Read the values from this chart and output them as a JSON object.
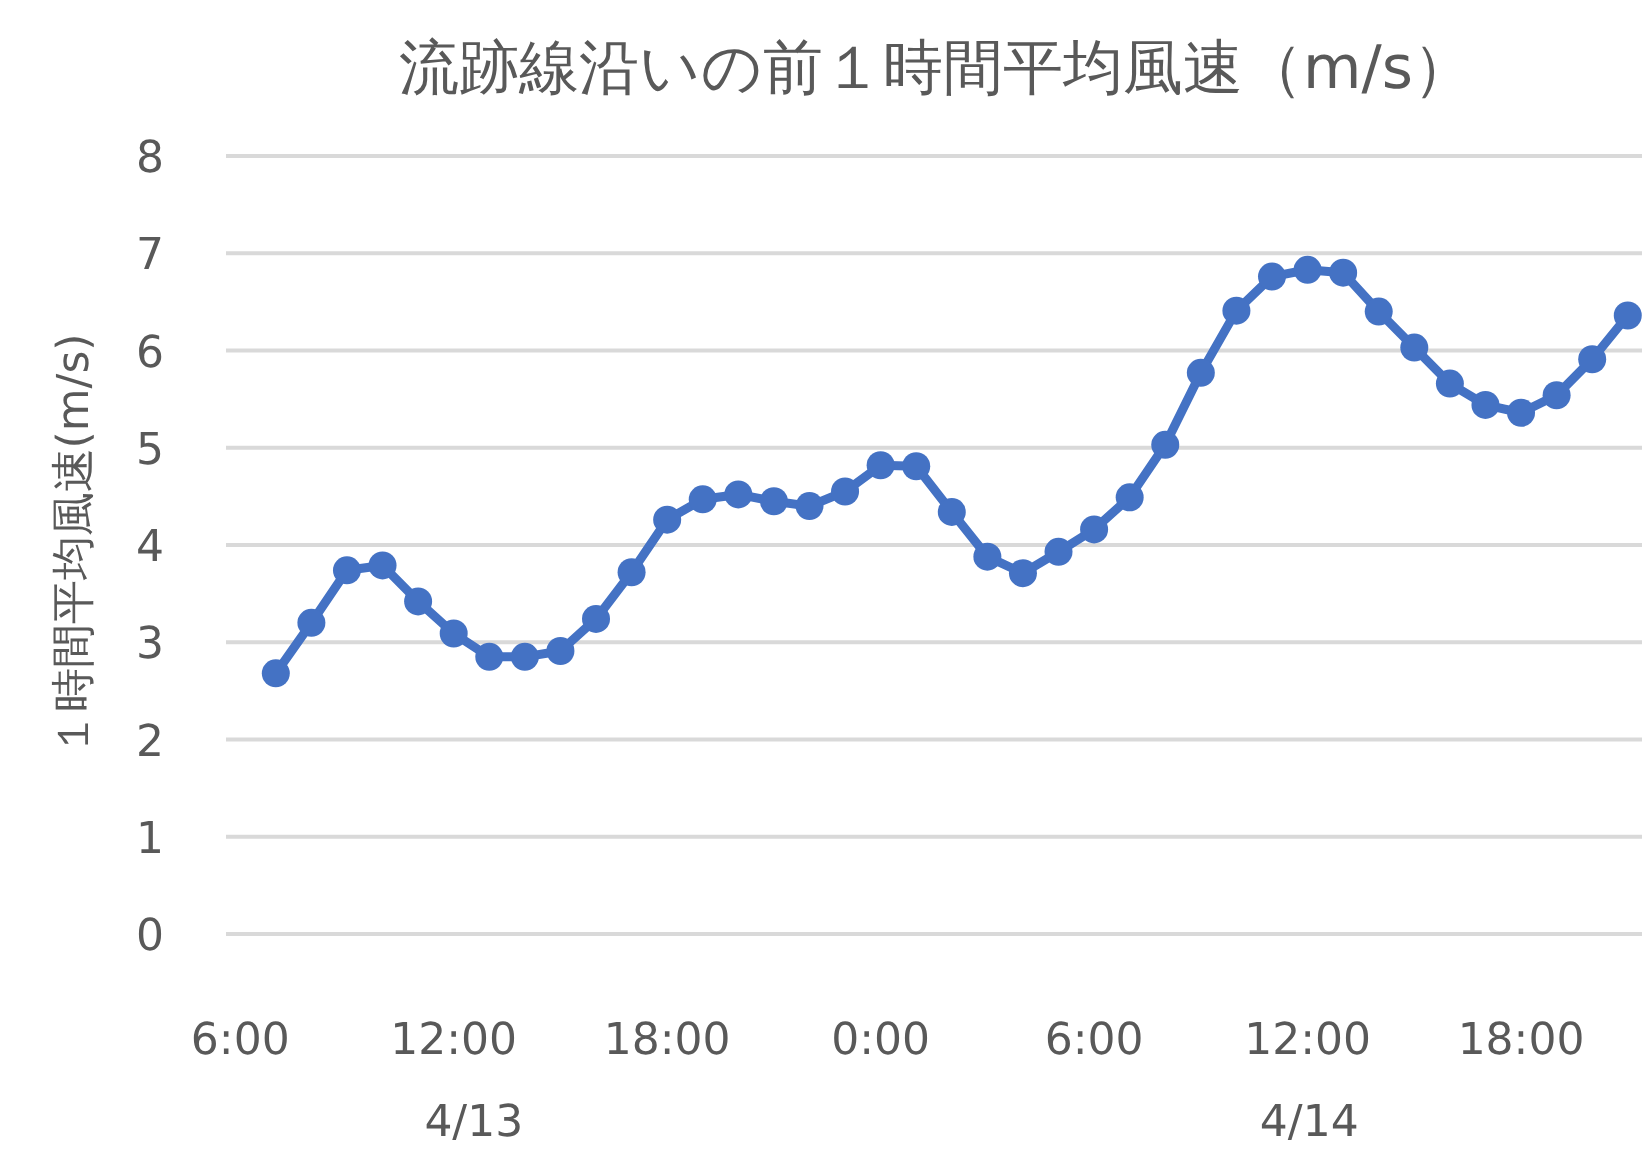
{
  "chart_data": {
    "type": "line",
    "title": "流跡線沿いの前１時間平均風速（m/s）",
    "ylabel": "１時間平均風速(m/s)",
    "x": [
      "--04-13T07:00",
      "--04-13T08:00",
      "--04-13T09:00",
      "--04-13T10:00",
      "--04-13T11:00",
      "--04-13T12:00",
      "--04-13T13:00",
      "--04-13T14:00",
      "--04-13T15:00",
      "--04-13T16:00",
      "--04-13T17:00",
      "--04-13T18:00",
      "--04-13T19:00",
      "--04-13T20:00",
      "--04-13T21:00",
      "--04-13T22:00",
      "--04-13T23:00",
      "--04-14T00:00",
      "--04-14T01:00",
      "--04-14T02:00",
      "--04-14T03:00",
      "--04-14T04:00",
      "--04-14T05:00",
      "--04-14T06:00",
      "--04-14T07:00",
      "--04-14T08:00",
      "--04-14T09:00",
      "--04-14T10:00",
      "--04-14T11:00",
      "--04-14T12:00",
      "--04-14T13:00",
      "--04-14T14:00",
      "--04-14T15:00",
      "--04-14T16:00",
      "--04-14T17:00",
      "--04-14T18:00",
      "--04-14T19:00",
      "--04-14T20:00",
      "--04-14T21:00"
    ],
    "series": [
      {
        "color": "#4472c4",
        "values": [
          2.68,
          3.2,
          3.74,
          3.79,
          3.42,
          3.09,
          2.85,
          2.85,
          2.91,
          3.24,
          3.72,
          4.26,
          4.47,
          4.52,
          4.45,
          4.4,
          4.55,
          4.82,
          4.81,
          4.34,
          3.88,
          3.71,
          3.93,
          4.16,
          4.49,
          5.03,
          5.77,
          6.41,
          6.76,
          6.83,
          6.8,
          6.4,
          6.03,
          5.66,
          5.44,
          5.36,
          5.54,
          5.91,
          6.36
        ]
      }
    ],
    "xlim": [
      "--04-13T05:36",
      "--04-14T21:24"
    ],
    "xticks": [
      {
        "value": "--04-13T06:00",
        "label": "6:00"
      },
      {
        "value": "--04-13T12:00",
        "label": "12:00"
      },
      {
        "value": "--04-13T18:00",
        "label": "18:00"
      },
      {
        "value": "--04-14T00:00",
        "label": "0:00"
      },
      {
        "value": "--04-14T06:00",
        "label": "6:00"
      },
      {
        "value": "--04-14T12:00",
        "label": "12:00"
      },
      {
        "value": "--04-14T18:00",
        "label": "18:00"
      }
    ],
    "ylim": [
      0,
      8
    ],
    "yticks": [
      0,
      1,
      2,
      3,
      4,
      5,
      6,
      7,
      8
    ],
    "annotations": [
      "4/13",
      "4/14"
    ],
    "grid": "y",
    "marker": "circle",
    "line_style": "solid"
  }
}
